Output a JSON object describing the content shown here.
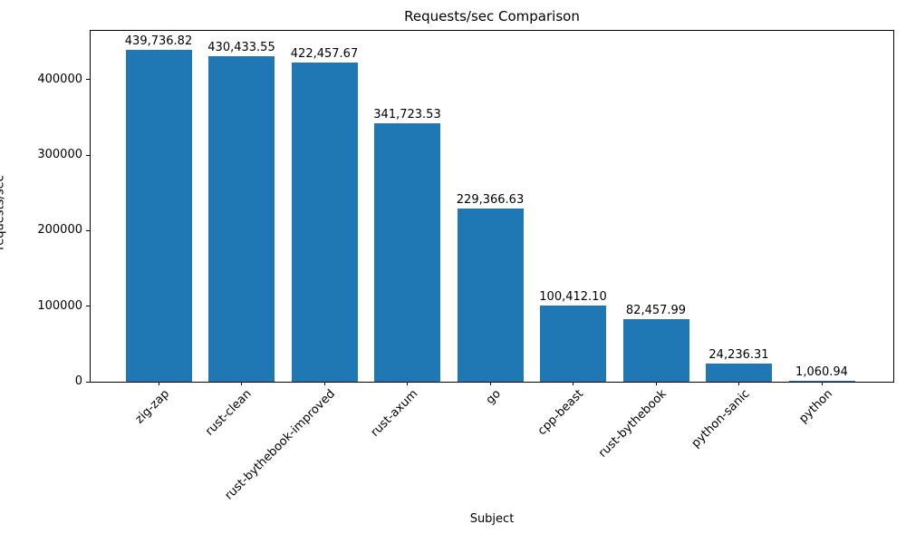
{
  "chart_data": {
    "type": "bar",
    "title": "Requests/sec Comparison",
    "xlabel": "Subject",
    "ylabel": "requests/sec",
    "categories": [
      "zig-zap",
      "rust-clean",
      "rust-bythebook-improved",
      "rust-axum",
      "go",
      "cpp-beast",
      "rust-bythebook",
      "python-sanic",
      "python"
    ],
    "values": [
      439736.82,
      430433.55,
      422457.67,
      341723.53,
      229366.63,
      100412.1,
      82457.99,
      24236.31,
      1060.94
    ],
    "value_labels": [
      "439,736.82",
      "430,433.55",
      "422,457.67",
      "341,723.53",
      "229,366.63",
      "100,412.10",
      "82,457.99",
      "24,236.31",
      "1,060.94"
    ],
    "yticks": [
      0,
      100000,
      200000,
      300000,
      400000
    ],
    "ytick_labels": [
      "0",
      "100000",
      "200000",
      "300000",
      "400000"
    ],
    "ylim": [
      0,
      464500
    ],
    "bar_color": "#1f77b4",
    "grid": false,
    "legend": "none",
    "background_color": "#ffffff",
    "text_color": "#000000"
  }
}
